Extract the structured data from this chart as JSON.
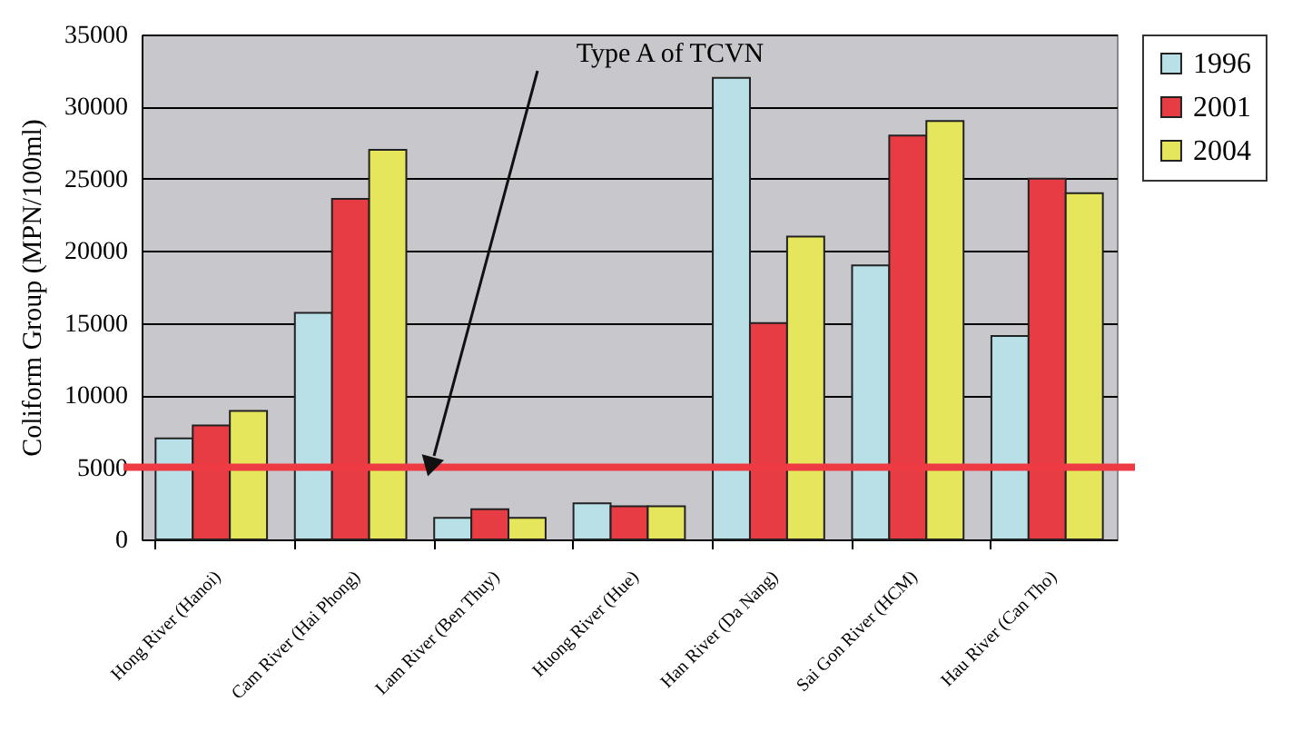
{
  "chart_data": {
    "type": "bar",
    "ylabel": "Coliform Group (MPN/100ml)",
    "categories": [
      "Hong River (Hanoi)",
      "Cam River (Hai Phong)",
      "Lam River (Ben Thuy)",
      "Huong River (Hue)",
      "Han River (Da Nang)",
      "Sai Gon River (HCM)",
      "Hau River (Can Tho)"
    ],
    "series": [
      {
        "name": "1996",
        "color": "#b8e0e6",
        "values": [
          7000,
          15700,
          1500,
          2500,
          32000,
          19000,
          14100
        ]
      },
      {
        "name": "2001",
        "color": "#e83c44",
        "values": [
          7900,
          23600,
          2100,
          2300,
          15000,
          28000,
          25000
        ]
      },
      {
        "name": "2004",
        "color": "#e6e65c",
        "values": [
          8900,
          27000,
          1500,
          2300,
          21000,
          29000,
          24000
        ]
      }
    ],
    "ylim": [
      0,
      35000
    ],
    "yticks": [
      0,
      5000,
      10000,
      15000,
      20000,
      25000,
      30000,
      35000
    ],
    "grid": "y",
    "legend": "right",
    "ref_lines": [
      {
        "axis": "y",
        "value": 5000,
        "color": "#ee3b43"
      }
    ],
    "annotations": [
      "Type A of TCVN"
    ]
  }
}
